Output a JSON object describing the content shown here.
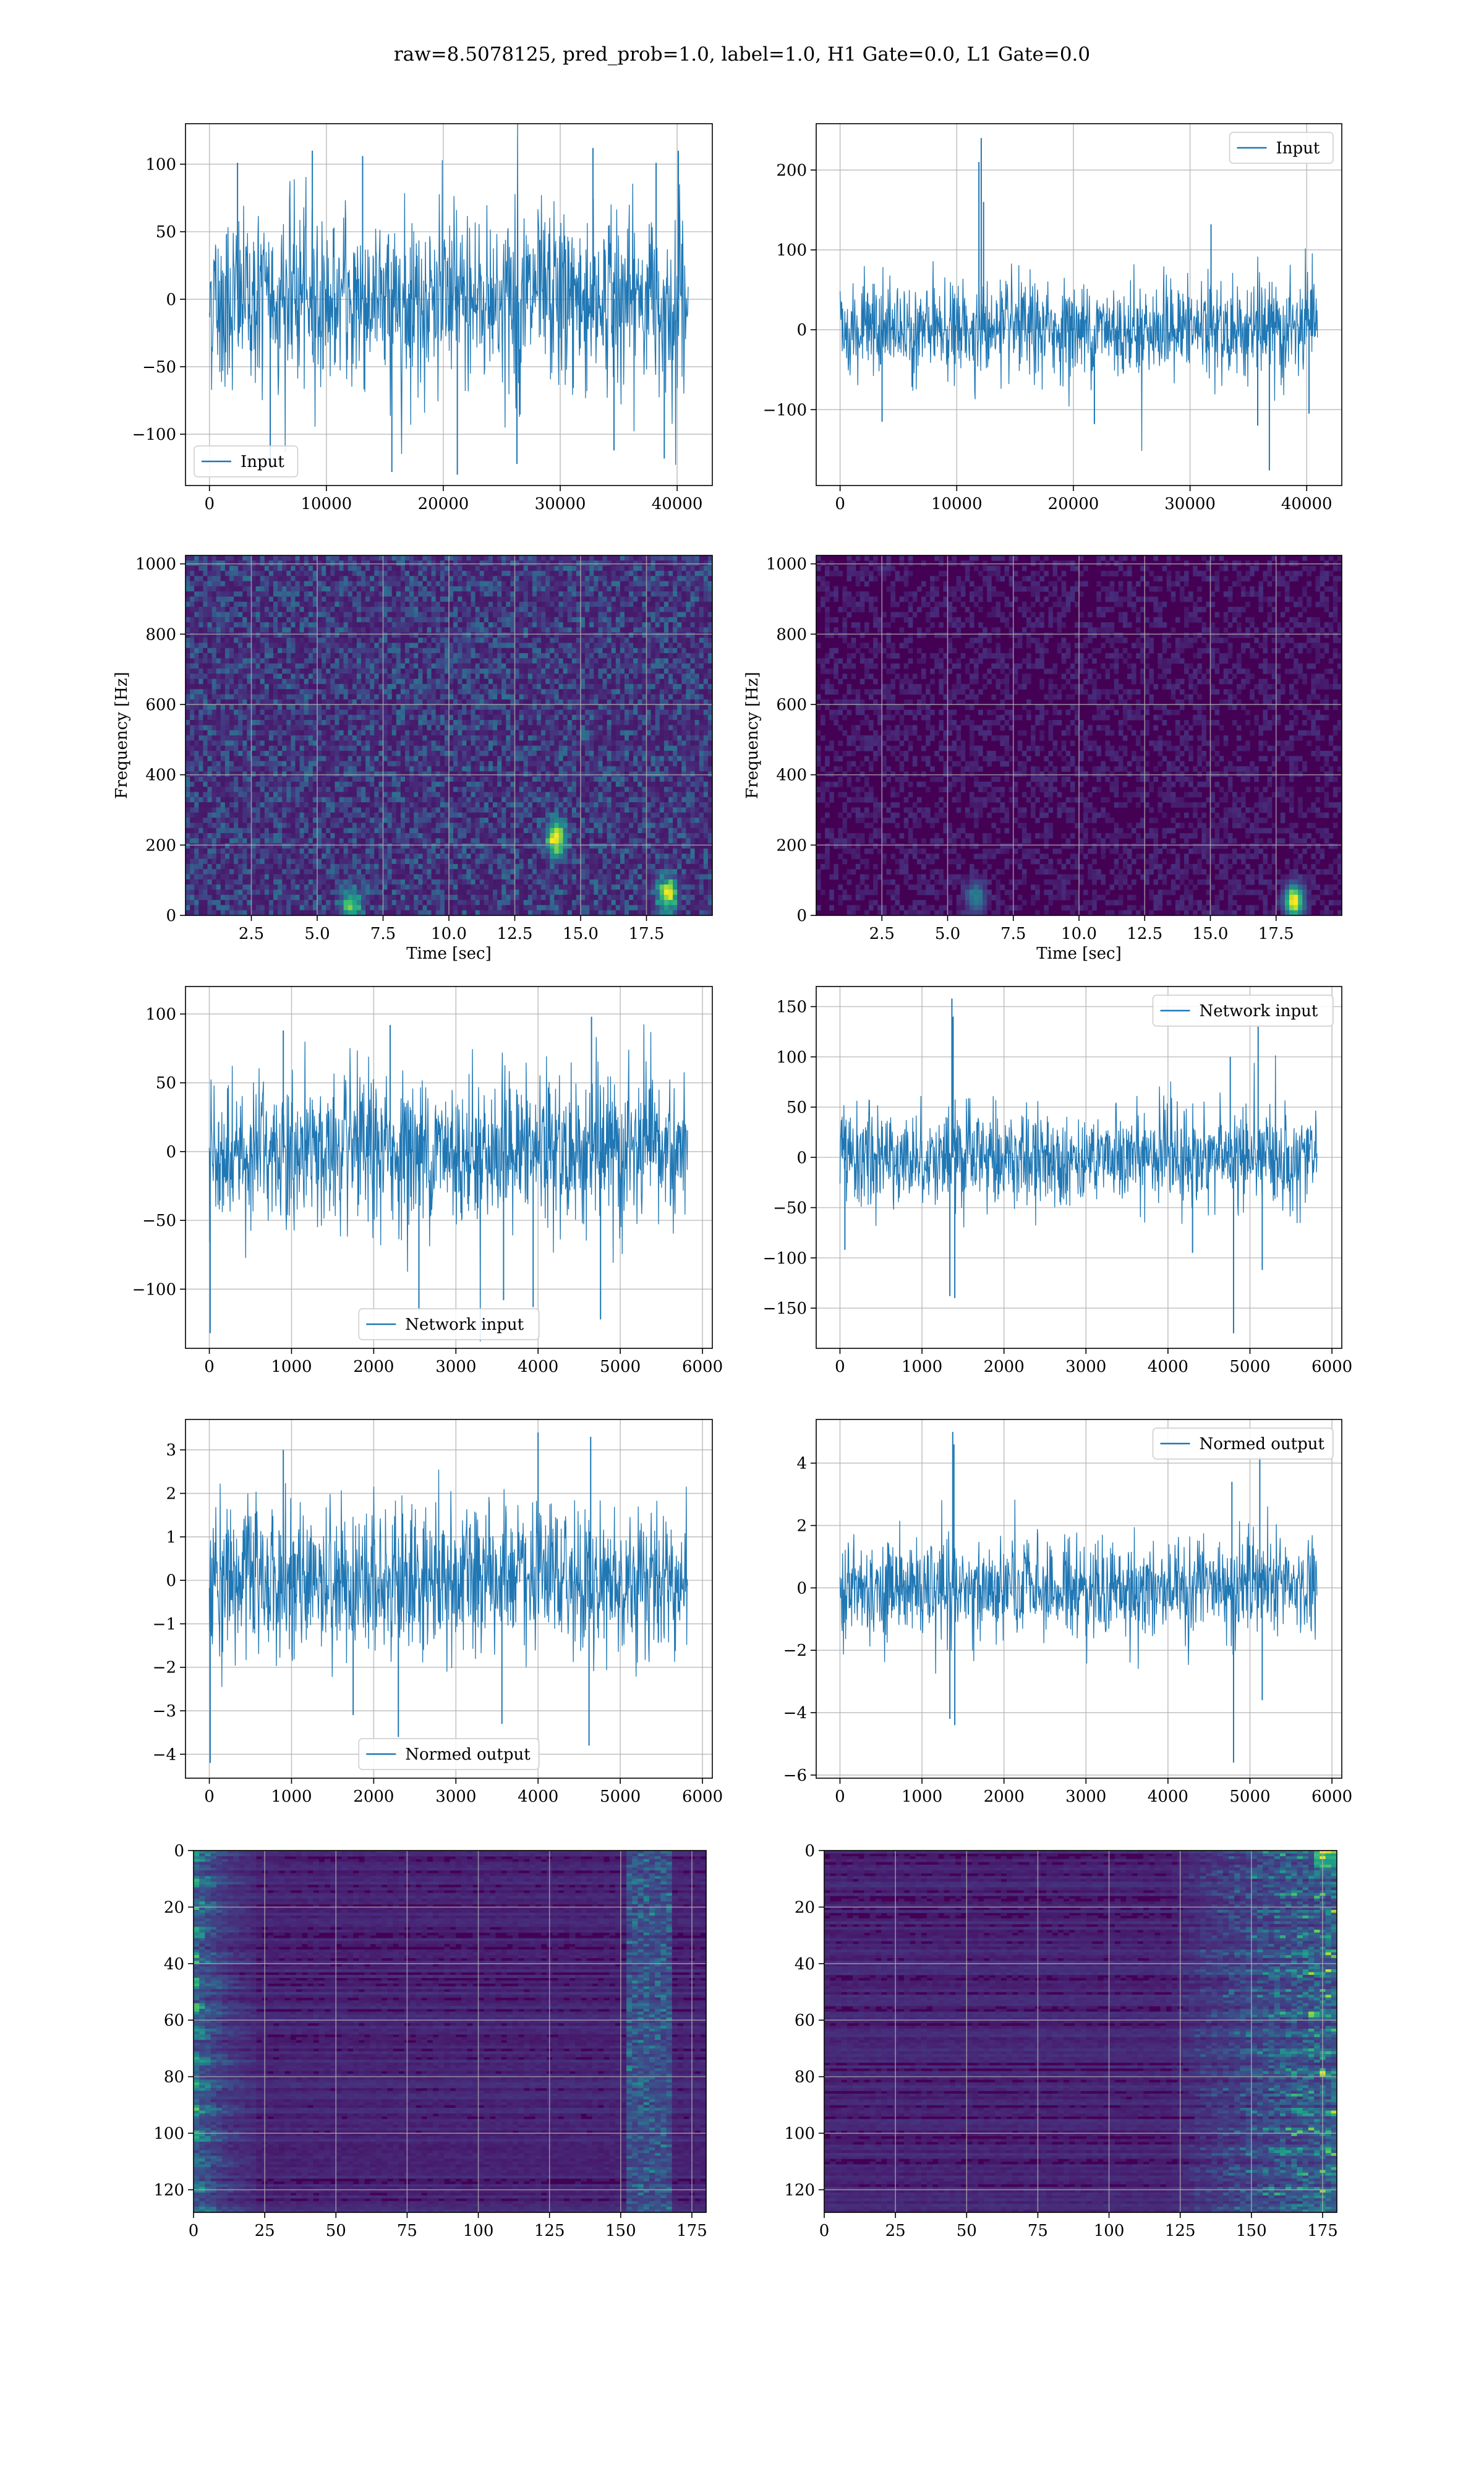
{
  "figure": {
    "suptitle": "raw=8.5078125, pred_prob=1.0, label=1.0, H1 Gate=0.0, L1 Gate=0.0",
    "colors": {
      "line": "#1f77b4",
      "grid": "#b0b0b0",
      "viridis_dark": "#440154"
    }
  },
  "chart_data": [
    {
      "id": "input_h1",
      "type": "line",
      "legend": {
        "entries": [
          "Input"
        ],
        "placement": "lower-left"
      },
      "xlim": [
        -2048,
        43008
      ],
      "ylim": [
        -138,
        130
      ],
      "xticks": [
        0,
        10000,
        20000,
        30000,
        40000
      ],
      "xtick_labels": [
        "0",
        "10000",
        "20000",
        "30000",
        "40000"
      ],
      "yticks": [
        -100,
        -50,
        0,
        50,
        100
      ],
      "ytick_labels": [
        "−100",
        "−50",
        "0",
        "50",
        "100"
      ],
      "grid": true,
      "series": [
        {
          "name": "Input",
          "n_samples": 40960,
          "band": [
            -62,
            62
          ],
          "spikes": [
            [
              2400,
              101
            ],
            [
              5200,
              -118
            ],
            [
              8800,
              110
            ],
            [
              13100,
              106
            ],
            [
              15600,
              -128
            ],
            [
              21200,
              -130
            ],
            [
              26300,
              -122
            ],
            [
              32800,
              112
            ],
            [
              34600,
              -112
            ],
            [
              38200,
              101
            ],
            [
              38900,
              -118
            ],
            [
              40100,
              110
            ]
          ]
        }
      ]
    },
    {
      "id": "input_l1",
      "type": "line",
      "legend": {
        "entries": [
          "Input"
        ],
        "placement": "upper-right"
      },
      "xlim": [
        -2048,
        43008
      ],
      "ylim": [
        -195,
        258
      ],
      "xticks": [
        0,
        10000,
        20000,
        30000,
        40000
      ],
      "xtick_labels": [
        "0",
        "10000",
        "20000",
        "30000",
        "40000"
      ],
      "yticks": [
        -100,
        0,
        100,
        200
      ],
      "ytick_labels": [
        "−100",
        "0",
        "100",
        "200"
      ],
      "grid": true,
      "series": [
        {
          "name": "Input",
          "n_samples": 40960,
          "band": [
            -55,
            55
          ],
          "spikes": [
            [
              11900,
              210
            ],
            [
              12100,
              240
            ],
            [
              12300,
              160
            ],
            [
              3600,
              -115
            ],
            [
              21800,
              -118
            ],
            [
              31800,
              132
            ],
            [
              35800,
              -120
            ],
            [
              36800,
              -176
            ],
            [
              40200,
              -105
            ]
          ]
        }
      ]
    },
    {
      "id": "spec_h1",
      "type": "heatmap",
      "xlabel": "Time [sec]",
      "ylabel": "Frequency [Hz]",
      "xlim": [
        0,
        20
      ],
      "ylim": [
        0,
        1024
      ],
      "xticks": [
        2.5,
        5.0,
        7.5,
        10.0,
        12.5,
        15.0,
        17.5
      ],
      "xtick_labels": [
        "2.5",
        "5.0",
        "7.5",
        "10.0",
        "12.5",
        "15.0",
        "17.5"
      ],
      "yticks": [
        0,
        200,
        400,
        600,
        800,
        1000
      ],
      "ytick_labels": [
        "0",
        "200",
        "400",
        "600",
        "800",
        "1000"
      ],
      "grid": true,
      "colormap": "viridis",
      "background_level": 0.22,
      "hot_spots": [
        [
          14.0,
          220,
          0.9
        ],
        [
          18.2,
          60,
          0.8
        ],
        [
          6.2,
          30,
          0.6
        ]
      ]
    },
    {
      "id": "spec_l1",
      "type": "heatmap",
      "xlabel": "Time [sec]",
      "ylabel": "Frequency [Hz]",
      "xlim": [
        0,
        20
      ],
      "ylim": [
        0,
        1024
      ],
      "xticks": [
        2.5,
        5.0,
        7.5,
        10.0,
        12.5,
        15.0,
        17.5
      ],
      "xtick_labels": [
        "2.5",
        "5.0",
        "7.5",
        "10.0",
        "12.5",
        "15.0",
        "17.5"
      ],
      "yticks": [
        0,
        200,
        400,
        600,
        800,
        1000
      ],
      "ytick_labels": [
        "0",
        "200",
        "400",
        "600",
        "800",
        "1000"
      ],
      "grid": true,
      "colormap": "viridis",
      "background_level": 0.08,
      "hot_spots": [
        [
          18.1,
          40,
          1.0
        ],
        [
          6.0,
          50,
          0.4
        ]
      ]
    },
    {
      "id": "netin_h1",
      "type": "line",
      "legend": {
        "entries": [
          "Network input"
        ],
        "placement": "lower-center"
      },
      "xlim": [
        -290,
        6120
      ],
      "ylim": [
        -143,
        120
      ],
      "xticks": [
        0,
        1000,
        2000,
        3000,
        4000,
        5000,
        6000
      ],
      "xtick_labels": [
        "0",
        "1000",
        "2000",
        "3000",
        "4000",
        "5000",
        "6000"
      ],
      "yticks": [
        -100,
        -50,
        0,
        50,
        100
      ],
      "ytick_labels": [
        "−100",
        "−50",
        "0",
        "50",
        "100"
      ],
      "grid": true,
      "series": [
        {
          "name": "Network input",
          "n_samples": 5820,
          "band": [
            -50,
            50
          ],
          "spikes": [
            [
              10,
              -132
            ],
            [
              2550,
              -115
            ],
            [
              3580,
              -108
            ],
            [
              3940,
              -113
            ],
            [
              4650,
              98
            ],
            [
              4760,
              -122
            ],
            [
              2200,
              92
            ],
            [
              900,
              88
            ]
          ]
        }
      ]
    },
    {
      "id": "netin_l1",
      "type": "line",
      "legend": {
        "entries": [
          "Network input"
        ],
        "placement": "upper-right"
      },
      "xlim": [
        -290,
        6120
      ],
      "ylim": [
        -190,
        170
      ],
      "xticks": [
        0,
        1000,
        2000,
        3000,
        4000,
        5000,
        6000
      ],
      "xtick_labels": [
        "0",
        "1000",
        "2000",
        "3000",
        "4000",
        "5000",
        "6000"
      ],
      "yticks": [
        -150,
        -100,
        -50,
        0,
        50,
        100,
        150
      ],
      "ytick_labels": [
        "−150",
        "−100",
        "−50",
        "0",
        "50",
        "100",
        "150"
      ],
      "grid": true,
      "series": [
        {
          "name": "Network input",
          "n_samples": 5820,
          "band": [
            -45,
            45
          ],
          "spikes": [
            [
              1365,
              158
            ],
            [
              1380,
              140
            ],
            [
              1400,
              -140
            ],
            [
              1340,
              -138
            ],
            [
              4800,
              -175
            ],
            [
              4760,
              100
            ],
            [
              5100,
              130
            ],
            [
              5150,
              -112
            ],
            [
              4300,
              -95
            ],
            [
              60,
              -92
            ]
          ]
        }
      ]
    },
    {
      "id": "norm_h1",
      "type": "line",
      "legend": {
        "entries": [
          "Normed output"
        ],
        "placement": "lower-center"
      },
      "xlim": [
        -290,
        6120
      ],
      "ylim": [
        -4.55,
        3.7
      ],
      "xticks": [
        0,
        1000,
        2000,
        3000,
        4000,
        5000,
        6000
      ],
      "xtick_labels": [
        "0",
        "1000",
        "2000",
        "3000",
        "4000",
        "5000",
        "6000"
      ],
      "yticks": [
        -4,
        -3,
        -2,
        -1,
        0,
        1,
        2,
        3
      ],
      "ytick_labels": [
        "−4",
        "−3",
        "−2",
        "−1",
        "0",
        "1",
        "2",
        "3"
      ],
      "grid": true,
      "series": [
        {
          "name": "Normed output",
          "n_samples": 5820,
          "band": [
            -1.65,
            1.65
          ],
          "spikes": [
            [
              10,
              -4.2
            ],
            [
              2300,
              -3.6
            ],
            [
              4000,
              3.4
            ],
            [
              4640,
              3.3
            ],
            [
              4620,
              -3.8
            ],
            [
              3560,
              -3.3
            ],
            [
              900,
              3.0
            ],
            [
              1750,
              -3.1
            ]
          ]
        }
      ]
    },
    {
      "id": "norm_l1",
      "type": "line",
      "legend": {
        "entries": [
          "Normed output"
        ],
        "placement": "upper-right"
      },
      "xlim": [
        -290,
        6120
      ],
      "ylim": [
        -6.1,
        5.4
      ],
      "xticks": [
        0,
        1000,
        2000,
        3000,
        4000,
        5000,
        6000
      ],
      "xtick_labels": [
        "0",
        "1000",
        "2000",
        "3000",
        "4000",
        "5000",
        "6000"
      ],
      "yticks": [
        -6,
        -4,
        -2,
        0,
        2,
        4
      ],
      "ytick_labels": [
        "−6",
        "−4",
        "−2",
        "0",
        "2",
        "4"
      ],
      "grid": true,
      "series": [
        {
          "name": "Normed output",
          "n_samples": 5820,
          "band": [
            -1.5,
            1.5
          ],
          "spikes": [
            [
              1375,
              5.0
            ],
            [
              1390,
              4.6
            ],
            [
              1400,
              -4.4
            ],
            [
              1340,
              -4.2
            ],
            [
              4800,
              -5.6
            ],
            [
              5120,
              4.2
            ],
            [
              5150,
              -3.6
            ],
            [
              4780,
              3.4
            ]
          ]
        }
      ]
    },
    {
      "id": "feat_h1",
      "type": "heatmap",
      "xlim": [
        0,
        180
      ],
      "ylim": [
        128,
        0
      ],
      "xticks": [
        0,
        25,
        50,
        75,
        100,
        125,
        150,
        175
      ],
      "xtick_labels": [
        "0",
        "25",
        "50",
        "75",
        "100",
        "125",
        "150",
        "175"
      ],
      "yticks": [
        0,
        20,
        40,
        60,
        80,
        100,
        120
      ],
      "ytick_labels": [
        "0",
        "20",
        "40",
        "60",
        "80",
        "100",
        "120"
      ],
      "grid": true,
      "colormap": "viridis",
      "background_level": 0.12,
      "bright_region": "left edge (x 0–20) and right band (x 155–165)"
    },
    {
      "id": "feat_l1",
      "type": "heatmap",
      "xlim": [
        0,
        180
      ],
      "ylim": [
        128,
        0
      ],
      "xticks": [
        0,
        25,
        50,
        75,
        100,
        125,
        150,
        175
      ],
      "xtick_labels": [
        "0",
        "25",
        "50",
        "75",
        "100",
        "125",
        "150",
        "175"
      ],
      "yticks": [
        0,
        20,
        40,
        60,
        80,
        100,
        120
      ],
      "ytick_labels": [
        "0",
        "20",
        "40",
        "60",
        "80",
        "100",
        "120"
      ],
      "grid": true,
      "colormap": "viridis",
      "background_level": 0.1,
      "bright_region": "right side (x 125–180)"
    }
  ]
}
